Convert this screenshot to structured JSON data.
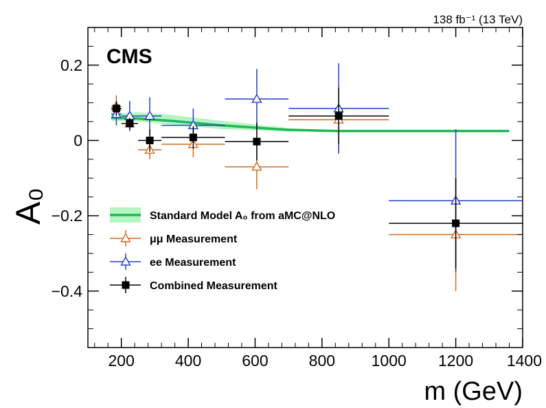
{
  "chart_data": {
    "type": "scatter",
    "lumi_label": "138 fb⁻¹ (13 TeV)",
    "experiment_label": "CMS",
    "xlabel": "m (GeV)",
    "ylabel": "A₀",
    "xlim": [
      100,
      1400
    ],
    "ylim": [
      -0.55,
      0.3
    ],
    "x_ticks": [
      200,
      400,
      600,
      800,
      1000,
      1200,
      1400
    ],
    "y_ticks": [
      -0.4,
      -0.2,
      0,
      0.2
    ],
    "x_tick_labels": [
      "200",
      "400",
      "600",
      "800",
      "1000",
      "1200",
      "1400"
    ],
    "y_tick_labels": [
      "−0.4",
      "−0.2",
      "0",
      "0.2"
    ],
    "grid": false,
    "legend_position": "middle-left",
    "legend": [
      {
        "label": "Standard Model A₀ from aMC@NLO",
        "style": "band"
      },
      {
        "label": "μμ Measurement",
        "style": "open-triangle"
      },
      {
        "label": "ee Measurement",
        "style": "open-triangle"
      },
      {
        "label": "Combined Measurement",
        "style": "filled-square"
      }
    ],
    "colors": {
      "sm_line": "#1db954",
      "sm_band": "#b6f5c2",
      "mumu": "#d2691e",
      "ee": "#1f3fbf",
      "combined": "#000000"
    },
    "sm_prediction": {
      "x": [
        170,
        250,
        350,
        500,
        700,
        850,
        1000,
        1200,
        1360
      ],
      "y": [
        0.06,
        0.058,
        0.052,
        0.04,
        0.028,
        0.025,
        0.025,
        0.025,
        0.025
      ],
      "band_low": [
        0.052,
        0.05,
        0.042,
        0.03,
        0.024,
        0.024,
        0.024,
        0.024,
        0.024
      ],
      "band_high": [
        0.072,
        0.075,
        0.068,
        0.052,
        0.033,
        0.027,
        0.027,
        0.027,
        0.027
      ]
    },
    "bins": [
      [
        170,
        200
      ],
      [
        200,
        250
      ],
      [
        250,
        320
      ],
      [
        320,
        510
      ],
      [
        510,
        700
      ],
      [
        700,
        1000
      ],
      [
        1000,
        1400
      ]
    ],
    "series": [
      {
        "name": "μμ Measurement",
        "x": [
          185,
          225,
          285,
          415,
          605,
          850,
          1200
        ],
        "y": [
          0.09,
          0.045,
          -0.025,
          -0.01,
          -0.07,
          0.055,
          -0.25
        ],
        "yerr": [
          0.03,
          0.015,
          0.025,
          0.035,
          0.06,
          0.09,
          0.15
        ]
      },
      {
        "name": "ee Measurement",
        "x": [
          185,
          225,
          285,
          415,
          605,
          850,
          1200
        ],
        "y": [
          0.07,
          0.065,
          0.065,
          0.04,
          0.11,
          0.085,
          -0.16
        ],
        "yerr": [
          0.03,
          0.04,
          0.05,
          0.045,
          0.08,
          0.12,
          0.19
        ]
      },
      {
        "name": "Combined Measurement",
        "x": [
          185,
          225,
          285,
          415,
          605,
          850,
          1200
        ],
        "y": [
          0.085,
          0.045,
          0.0,
          0.008,
          -0.003,
          0.065,
          -0.22
        ],
        "yerr": [
          0.02,
          0.015,
          0.03,
          0.03,
          0.05,
          0.075,
          0.12
        ]
      }
    ]
  }
}
